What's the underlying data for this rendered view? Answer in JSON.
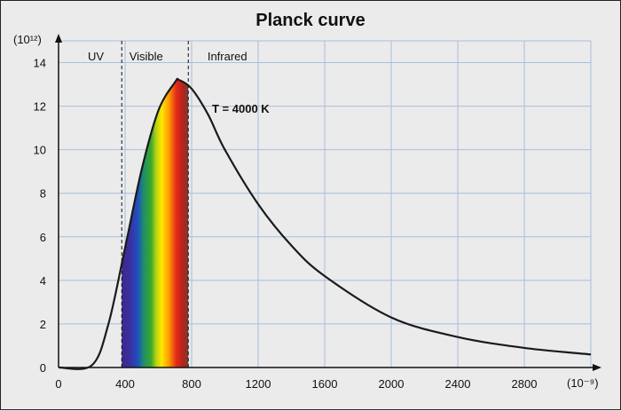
{
  "chart_data": {
    "type": "line",
    "title": "Planck curve",
    "y_unit": "(10¹²)",
    "x_unit": "(10⁻⁹)",
    "xlim": [
      0,
      3200
    ],
    "ylim": [
      0,
      15
    ],
    "x_ticks": [
      "0",
      "400",
      "800",
      "1200",
      "1600",
      "2000",
      "2400",
      "2800"
    ],
    "x_tick_values": [
      0,
      400,
      800,
      1200,
      1600,
      2000,
      2400,
      2800
    ],
    "y_ticks": [
      "0",
      "2",
      "4",
      "6",
      "8",
      "10",
      "12",
      "14"
    ],
    "y_tick_values": [
      0,
      2,
      4,
      6,
      8,
      10,
      12,
      14
    ],
    "grid": true,
    "regions": [
      {
        "label": "UV"
      },
      {
        "label": "Visible"
      },
      {
        "label": "Infrared"
      }
    ],
    "boundaries": [
      380,
      780
    ],
    "annotation": "T = 4000 K",
    "temperature": 4000,
    "series": [
      {
        "x": [
          0,
          200,
          300,
          400,
          500,
          600,
          700,
          725,
          800,
          900,
          1000,
          1200,
          1400,
          1600,
          2000,
          2400,
          2800,
          3200
        ],
        "values": [
          0,
          0.1,
          2.0,
          5.5,
          9.1,
          11.8,
          13.1,
          13.2,
          12.8,
          11.6,
          10.0,
          7.5,
          5.6,
          4.2,
          2.3,
          1.4,
          0.9,
          0.6
        ]
      }
    ]
  }
}
